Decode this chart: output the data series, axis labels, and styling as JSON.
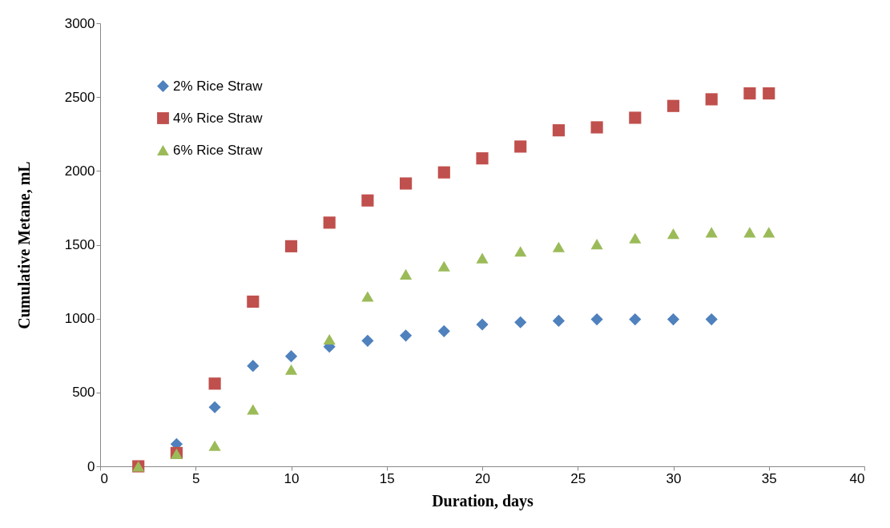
{
  "chart_data": {
    "type": "scatter",
    "xlabel": "Duration,  days",
    "ylabel": "Cumulative  Metane, mL",
    "xlim": [
      0,
      40
    ],
    "ylim": [
      0,
      3000
    ],
    "xticks": [
      0,
      5,
      10,
      15,
      20,
      25,
      30,
      35,
      40
    ],
    "yticks": [
      0,
      500,
      1000,
      1500,
      2000,
      2500,
      3000
    ],
    "grid": false,
    "legend": "top left",
    "series": [
      {
        "name": "2% Rice Straw",
        "color": "#4f81bd",
        "marker": "diamond",
        "x": [
          4,
          6,
          8,
          10,
          12,
          14,
          16,
          18,
          20,
          22,
          24,
          26,
          28,
          30,
          32
        ],
        "values": [
          150,
          400,
          680,
          745,
          810,
          850,
          885,
          915,
          960,
          975,
          985,
          995,
          995,
          995,
          995
        ]
      },
      {
        "name": "4% Rice Straw",
        "color": "#c0504d",
        "marker": "square",
        "x": [
          2,
          4,
          6,
          8,
          10,
          12,
          14,
          16,
          18,
          20,
          22,
          24,
          26,
          28,
          30,
          32,
          34,
          35
        ],
        "values": [
          0,
          90,
          560,
          1115,
          1490,
          1650,
          1800,
          1915,
          1990,
          2085,
          2165,
          2275,
          2295,
          2360,
          2440,
          2485,
          2525,
          2525
        ]
      },
      {
        "name": "6% Rice Straw",
        "color": "#9bbb59",
        "marker": "triangle",
        "x": [
          2,
          4,
          6,
          8,
          10,
          12,
          14,
          16,
          18,
          20,
          22,
          24,
          26,
          28,
          30,
          32,
          34,
          35
        ],
        "values": [
          0,
          85,
          140,
          385,
          655,
          860,
          1150,
          1300,
          1355,
          1410,
          1455,
          1485,
          1505,
          1545,
          1575,
          1585,
          1585,
          1585
        ]
      }
    ]
  }
}
